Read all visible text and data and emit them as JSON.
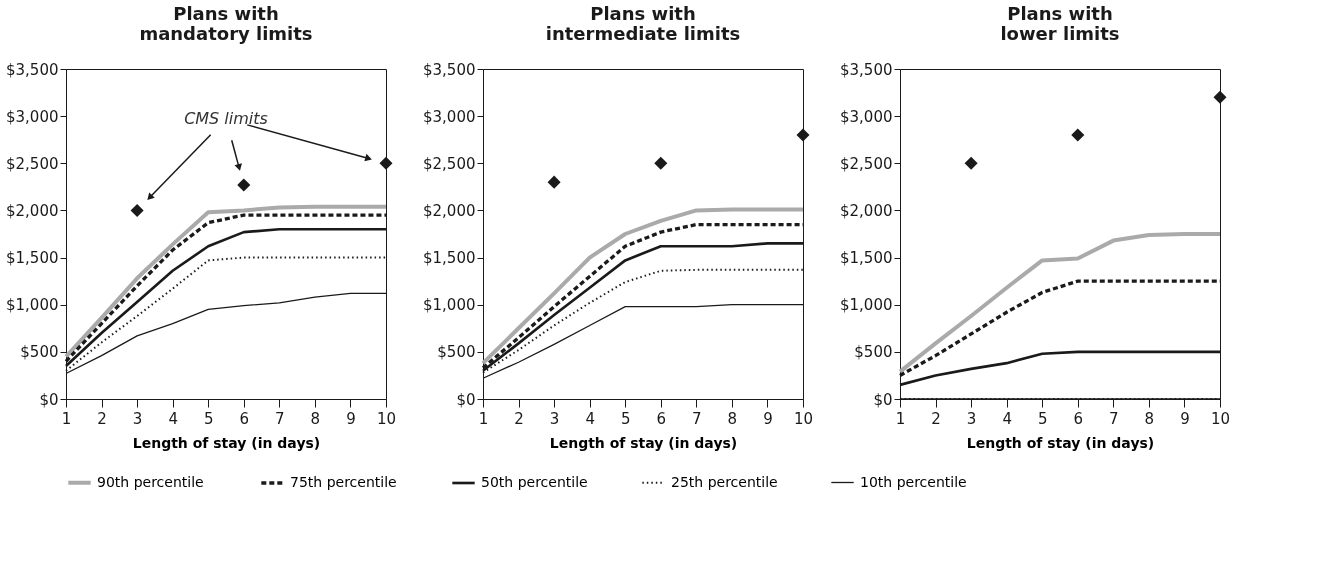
{
  "chart_data": [
    {
      "type": "line",
      "title": "Plans with\nmandatory limits",
      "xlabel": "Length of stay (in days)",
      "legend": "bottom",
      "grid": false,
      "marker": "none",
      "xlim": [
        1,
        10
      ],
      "xticks": [
        1,
        2,
        3,
        4,
        5,
        6,
        7,
        8,
        9,
        10
      ],
      "ylim": [
        0,
        3500
      ],
      "yticks": [
        {
          "value": 0,
          "label": "$0"
        },
        {
          "value": 500,
          "label": "$500"
        },
        {
          "value": 1000,
          "label": "$1,000"
        },
        {
          "value": 1500,
          "label": "$1,500"
        },
        {
          "value": 2000,
          "label": "$2,000"
        },
        {
          "value": 2500,
          "label": "$2,500"
        },
        {
          "value": 3000,
          "label": "$3,000"
        },
        {
          "value": 3500,
          "label": "$3,500"
        }
      ],
      "annotations": [
        "CMS limits"
      ],
      "x": [
        1,
        2,
        3,
        4,
        5,
        6,
        7,
        8,
        9,
        10
      ],
      "series": [
        {
          "name": "90th percentile",
          "color": "#aaaaaa",
          "line_style": "solid",
          "values": [
            450,
            860,
            1280,
            1640,
            1980,
            2000,
            2030,
            2040,
            2040,
            2040
          ]
        },
        {
          "name": "75th percentile",
          "color": "#1a1a1a",
          "line_style": "dashed",
          "values": [
            400,
            800,
            1200,
            1580,
            1870,
            1950,
            1950,
            1950,
            1950,
            1950
          ]
        },
        {
          "name": "50th percentile",
          "color": "#1a1a1a",
          "line_style": "solid",
          "values": [
            350,
            700,
            1030,
            1360,
            1620,
            1770,
            1800,
            1800,
            1800,
            1800
          ]
        },
        {
          "name": "25th percentile",
          "color": "#1a1a1a",
          "line_style": "dotted",
          "values": [
            300,
            600,
            880,
            1170,
            1470,
            1500,
            1500,
            1500,
            1500,
            1500
          ]
        },
        {
          "name": "10th percentile",
          "color": "#1a1a1a",
          "line_style": "solid",
          "values": [
            270,
            460,
            670,
            800,
            950,
            990,
            1020,
            1080,
            1120,
            1120
          ]
        },
        {
          "type": "scatter",
          "marker": "diamond",
          "color": "#1a1a1a",
          "x": [
            3,
            6,
            10
          ],
          "values": [
            2000,
            2270,
            2500
          ]
        }
      ]
    },
    {
      "type": "line",
      "title": "Plans with\nintermediate limits",
      "xlabel": "Length of stay (in days)",
      "legend": "bottom",
      "grid": false,
      "marker": "none",
      "xlim": [
        1,
        10
      ],
      "xticks": [
        1,
        2,
        3,
        4,
        5,
        6,
        7,
        8,
        9,
        10
      ],
      "ylim": [
        0,
        3500
      ],
      "yticks": [
        {
          "value": 0,
          "label": "$0"
        },
        {
          "value": 500,
          "label": "$500"
        },
        {
          "value": 1000,
          "label": "$1,000"
        },
        {
          "value": 1500,
          "label": "$1,500"
        },
        {
          "value": 2000,
          "label": "$2,000"
        },
        {
          "value": 2500,
          "label": "$2,500"
        },
        {
          "value": 3000,
          "label": "$3,000"
        },
        {
          "value": 3500,
          "label": "$3,500"
        }
      ],
      "x": [
        1,
        2,
        3,
        4,
        5,
        6,
        7,
        8,
        9,
        10
      ],
      "series": [
        {
          "name": "90th percentile",
          "color": "#aaaaaa",
          "line_style": "solid",
          "values": [
            380,
            750,
            1120,
            1500,
            1750,
            1890,
            2000,
            2010,
            2010,
            2010
          ]
        },
        {
          "name": "75th percentile",
          "color": "#1a1a1a",
          "line_style": "dashed",
          "values": [
            330,
            650,
            980,
            1300,
            1620,
            1770,
            1850,
            1850,
            1850,
            1850
          ]
        },
        {
          "name": "50th percentile",
          "color": "#1a1a1a",
          "line_style": "solid",
          "values": [
            300,
            590,
            890,
            1180,
            1470,
            1620,
            1620,
            1620,
            1650,
            1650
          ]
        },
        {
          "name": "25th percentile",
          "color": "#1a1a1a",
          "line_style": "dotted",
          "values": [
            280,
            520,
            780,
            1020,
            1240,
            1360,
            1370,
            1370,
            1370,
            1370
          ]
        },
        {
          "name": "10th percentile",
          "color": "#1a1a1a",
          "line_style": "solid",
          "values": [
            220,
            390,
            580,
            780,
            980,
            980,
            980,
            1000,
            1000,
            1000
          ]
        },
        {
          "type": "scatter",
          "marker": "diamond",
          "color": "#1a1a1a",
          "x": [
            3,
            6,
            10
          ],
          "values": [
            2300,
            2500,
            2800
          ]
        }
      ]
    },
    {
      "type": "line",
      "title": "Plans with\nlower limits",
      "xlabel": "Length of stay (in days)",
      "legend": "bottom",
      "grid": false,
      "marker": "none",
      "xlim": [
        1,
        10
      ],
      "xticks": [
        1,
        2,
        3,
        4,
        5,
        6,
        7,
        8,
        9,
        10
      ],
      "ylim": [
        0,
        3500
      ],
      "yticks": [
        {
          "value": 0,
          "label": "$0"
        },
        {
          "value": 500,
          "label": "$500"
        },
        {
          "value": 1000,
          "label": "$1,000"
        },
        {
          "value": 1500,
          "label": "$1,500"
        },
        {
          "value": 2000,
          "label": "$2,000"
        },
        {
          "value": 2500,
          "label": "$2,500"
        },
        {
          "value": 3000,
          "label": "$3,000"
        },
        {
          "value": 3500,
          "label": "$3,500"
        }
      ],
      "x": [
        1,
        2,
        3,
        4,
        5,
        6,
        7,
        8,
        9,
        10
      ],
      "series": [
        {
          "name": "90th percentile",
          "color": "#aaaaaa",
          "line_style": "solid",
          "values": [
            290,
            590,
            880,
            1180,
            1470,
            1490,
            1680,
            1740,
            1750,
            1750
          ]
        },
        {
          "name": "75th percentile",
          "color": "#1a1a1a",
          "line_style": "dashed",
          "values": [
            250,
            460,
            690,
            920,
            1130,
            1250,
            1250,
            1250,
            1250,
            1250
          ]
        },
        {
          "name": "50th percentile",
          "color": "#1a1a1a",
          "line_style": "solid",
          "values": [
            150,
            250,
            320,
            380,
            480,
            500,
            500,
            500,
            500,
            500
          ]
        },
        {
          "name": "25th percentile",
          "color": "#1a1a1a",
          "line_style": "dotted",
          "values": [
            0,
            0,
            0,
            0,
            0,
            0,
            0,
            0,
            0,
            0
          ]
        },
        {
          "name": "10th percentile",
          "color": "#1a1a1a",
          "line_style": "solid",
          "values": [
            0,
            0,
            0,
            0,
            0,
            0,
            0,
            0,
            0,
            0
          ]
        },
        {
          "type": "scatter",
          "marker": "diamond",
          "color": "#1a1a1a",
          "x": [
            3,
            6,
            10
          ],
          "values": [
            2500,
            2800,
            3200
          ]
        }
      ]
    }
  ]
}
